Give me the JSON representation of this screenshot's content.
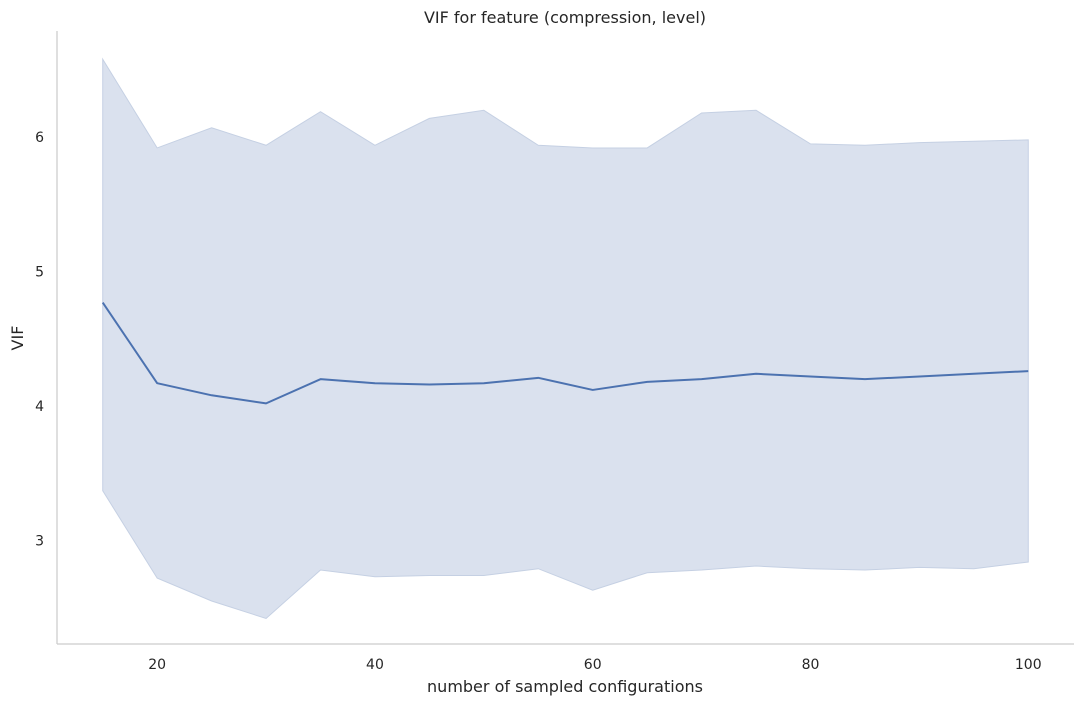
{
  "chart_data": {
    "type": "line",
    "title": "VIF for feature (compression, level)",
    "xlabel": "number of sampled configurations",
    "ylabel": "VIF",
    "x": [
      15,
      20,
      25,
      30,
      35,
      40,
      45,
      50,
      55,
      60,
      65,
      70,
      75,
      80,
      85,
      90,
      95,
      100
    ],
    "series": [
      {
        "values": [
          4.77,
          4.17,
          4.08,
          4.02,
          4.2,
          4.17,
          4.16,
          4.17,
          4.21,
          4.12,
          4.18,
          4.2,
          4.24,
          4.22,
          4.2,
          4.22,
          4.24,
          4.26
        ],
        "ci_lower": [
          3.37,
          2.72,
          2.55,
          2.42,
          2.78,
          2.73,
          2.74,
          2.74,
          2.79,
          2.63,
          2.76,
          2.78,
          2.81,
          2.79,
          2.78,
          2.8,
          2.79,
          2.84
        ],
        "ci_upper": [
          6.58,
          5.92,
          6.07,
          5.94,
          6.19,
          5.94,
          6.14,
          6.2,
          5.94,
          5.92,
          5.92,
          6.18,
          6.2,
          5.95,
          5.94,
          5.96,
          5.97,
          5.98
        ],
        "color": "#4c72b0",
        "band_color": "#dae1ee"
      }
    ],
    "xticks": [
      20,
      40,
      60,
      80,
      100
    ],
    "yticks": [
      3,
      4,
      5,
      6
    ],
    "xlim": [
      10.8,
      104.2
    ],
    "ylim": [
      2.23,
      6.79
    ],
    "grid": false,
    "legend": "none"
  }
}
